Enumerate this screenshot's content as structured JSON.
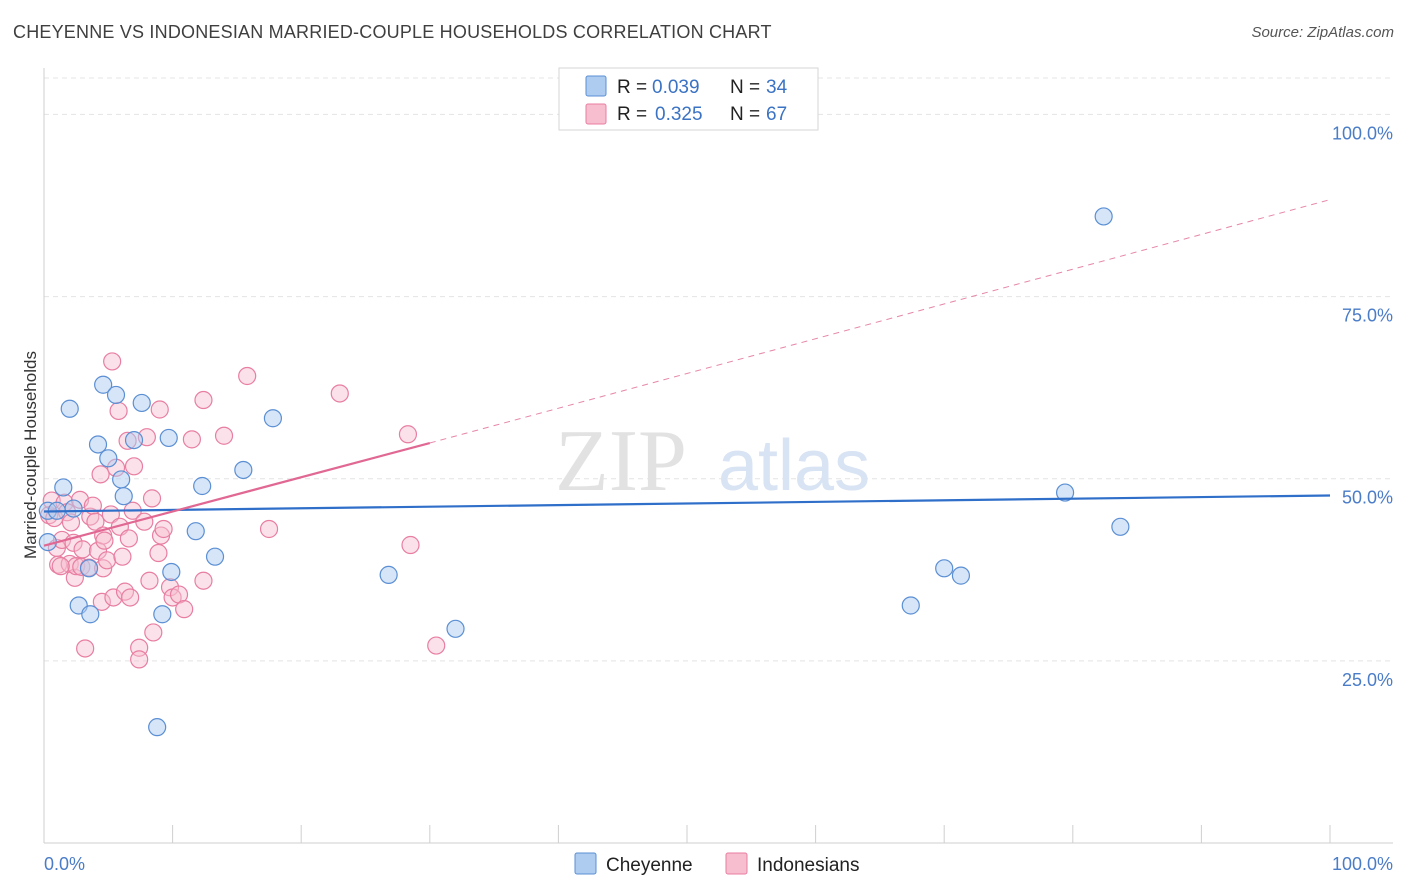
{
  "header": {
    "title": "CHEYENNE VS INDONESIAN MARRIED-COUPLE HOUSEHOLDS CORRELATION CHART",
    "source": "Source: ZipAtlas.com"
  },
  "watermark": {
    "zip": "ZIP",
    "atlas": "atlas"
  },
  "legend": {
    "r_label": "R =",
    "n_label": "N =",
    "rows": [
      {
        "r": "0.039",
        "n": "34"
      },
      {
        "r": "0.325",
        "n": "67"
      }
    ]
  },
  "bottom_legend": {
    "cheyenne": "Cheyenne",
    "indonesians": "Indonesians"
  },
  "colors": {
    "cheyenne_fill": "#aecbf0",
    "cheyenne_stroke": "#5b8fd4",
    "cheyenne_line": "#2f6fc9",
    "indonesian_fill": "#f7bed0",
    "indonesian_stroke": "#e87ea1",
    "indonesian_line": "#e06893",
    "tick": "#4a7cc7"
  },
  "chart_data": {
    "type": "scatter",
    "title": "CHEYENNE VS INDONESIAN MARRIED-COUPLE HOUSEHOLDS CORRELATION CHART",
    "xlabel": "",
    "ylabel": "Married-couple Households",
    "xlim": [
      0,
      100
    ],
    "ylim": [
      0,
      105
    ],
    "x_tick_labels": [
      "0.0%",
      "100.0%"
    ],
    "y_ticks": [
      {
        "value": 25,
        "label": "25.0%"
      },
      {
        "value": 50,
        "label": "50.0%"
      },
      {
        "value": 75,
        "label": "75.0%"
      },
      {
        "value": 100,
        "label": "100.0%"
      }
    ],
    "series": [
      {
        "name": "Cheyenne",
        "r": 0.039,
        "n": 34,
        "points": [
          [
            0.3,
            41.3
          ],
          [
            0.3,
            45.6
          ],
          [
            1.0,
            45.6
          ],
          [
            1.5,
            48.8
          ],
          [
            2.0,
            59.6
          ],
          [
            2.3,
            45.9
          ],
          [
            2.7,
            32.6
          ],
          [
            3.5,
            37.7
          ],
          [
            3.6,
            31.4
          ],
          [
            4.2,
            54.7
          ],
          [
            4.6,
            62.9
          ],
          [
            5.0,
            52.8
          ],
          [
            5.6,
            61.5
          ],
          [
            6.0,
            49.9
          ],
          [
            6.2,
            47.6
          ],
          [
            7.0,
            55.3
          ],
          [
            7.6,
            60.4
          ],
          [
            8.8,
            15.9
          ],
          [
            9.2,
            31.4
          ],
          [
            9.7,
            55.6
          ],
          [
            9.9,
            37.2
          ],
          [
            11.8,
            42.8
          ],
          [
            12.3,
            49.0
          ],
          [
            13.3,
            39.3
          ],
          [
            15.5,
            51.2
          ],
          [
            17.8,
            58.3
          ],
          [
            26.8,
            36.8
          ],
          [
            32.0,
            29.4
          ],
          [
            67.4,
            32.6
          ],
          [
            70.0,
            37.7
          ],
          [
            71.3,
            36.7
          ],
          [
            79.4,
            48.1
          ],
          [
            82.4,
            86.0
          ],
          [
            83.7,
            43.4
          ]
        ],
        "trend": [
          [
            0,
            45.5
          ],
          [
            100,
            47.7
          ]
        ]
      },
      {
        "name": "Indonesians",
        "r": 0.325,
        "n": 67,
        "points": [
          [
            0.4,
            45.0
          ],
          [
            0.6,
            47.0
          ],
          [
            0.8,
            44.6
          ],
          [
            1.0,
            40.5
          ],
          [
            1.1,
            38.2
          ],
          [
            1.4,
            41.6
          ],
          [
            1.6,
            46.7
          ],
          [
            1.8,
            45.4
          ],
          [
            2.0,
            38.3
          ],
          [
            2.3,
            41.2
          ],
          [
            2.4,
            36.4
          ],
          [
            2.5,
            38.0
          ],
          [
            2.8,
            47.1
          ],
          [
            2.9,
            37.9
          ],
          [
            3.0,
            40.3
          ],
          [
            3.2,
            26.7
          ],
          [
            3.5,
            37.8
          ],
          [
            3.6,
            44.8
          ],
          [
            3.8,
            46.3
          ],
          [
            4.0,
            44.1
          ],
          [
            4.2,
            40.1
          ],
          [
            4.4,
            50.6
          ],
          [
            4.5,
            33.1
          ],
          [
            4.6,
            37.7
          ],
          [
            4.6,
            42.2
          ],
          [
            4.7,
            41.5
          ],
          [
            4.9,
            38.8
          ],
          [
            5.2,
            45.1
          ],
          [
            5.3,
            66.1
          ],
          [
            5.4,
            33.7
          ],
          [
            5.6,
            51.5
          ],
          [
            5.8,
            59.3
          ],
          [
            5.9,
            43.4
          ],
          [
            6.1,
            39.3
          ],
          [
            6.3,
            34.5
          ],
          [
            6.5,
            55.2
          ],
          [
            6.7,
            33.7
          ],
          [
            6.9,
            45.6
          ],
          [
            7.0,
            51.7
          ],
          [
            7.4,
            26.8
          ],
          [
            7.4,
            25.2
          ],
          [
            7.8,
            44.1
          ],
          [
            8.0,
            55.7
          ],
          [
            8.2,
            36.0
          ],
          [
            8.4,
            47.3
          ],
          [
            8.5,
            28.9
          ],
          [
            8.9,
            39.8
          ],
          [
            9.0,
            59.5
          ],
          [
            9.1,
            42.2
          ],
          [
            9.3,
            43.1
          ],
          [
            9.8,
            35.1
          ],
          [
            10.0,
            33.7
          ],
          [
            10.5,
            34.1
          ],
          [
            10.9,
            32.1
          ],
          [
            11.5,
            55.4
          ],
          [
            12.4,
            36.0
          ],
          [
            12.4,
            60.8
          ],
          [
            14.0,
            55.9
          ],
          [
            15.8,
            64.1
          ],
          [
            17.5,
            43.1
          ],
          [
            23.0,
            61.7
          ],
          [
            28.3,
            56.1
          ],
          [
            28.5,
            40.9
          ],
          [
            30.5,
            27.1
          ],
          [
            1.3,
            38.0
          ],
          [
            2.1,
            44.0
          ],
          [
            6.6,
            41.8
          ]
        ],
        "trend_solid": [
          [
            0,
            40.8
          ],
          [
            30,
            54.9
          ]
        ],
        "trend_dashed": [
          [
            30,
            54.9
          ],
          [
            100,
            88.3
          ]
        ]
      }
    ]
  }
}
